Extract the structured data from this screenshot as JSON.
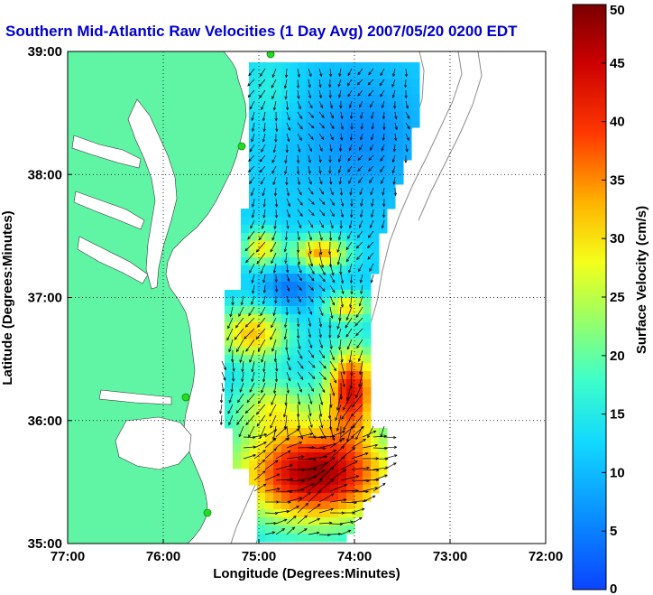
{
  "chart_data": {
    "type": "heatmap",
    "title": "Southern Mid-Atlantic Raw Velocities (1 Day Avg) 2007/05/20 0200 EDT",
    "xlabel": "Longitude (Degrees:Minutes)",
    "ylabel": "Latitude (Degrees:Minutes)",
    "xlim": [
      -77,
      -72
    ],
    "ylim": [
      35,
      39
    ],
    "x_tick_values": [
      -77,
      -76,
      -75,
      -74,
      -73,
      -72
    ],
    "x_tick_labels": [
      "77:00",
      "76:00",
      "75:00",
      "74:00",
      "73:00",
      "72:00"
    ],
    "y_tick_values": [
      35,
      36,
      37,
      38,
      39
    ],
    "y_tick_labels": [
      "35:00",
      "36:00",
      "37:00",
      "38:00",
      "39:00"
    ],
    "grid": true,
    "colorbar": {
      "label": "Surface Velocity (cm/s)",
      "min": 0,
      "max": 50,
      "tick_values": [
        0,
        5,
        10,
        15,
        20,
        25,
        30,
        35,
        40,
        45,
        50
      ],
      "tick_labels": [
        "0",
        "5",
        "10",
        "15",
        "20",
        "25",
        "30",
        "35",
        "40",
        "45",
        "50"
      ]
    },
    "colors": {
      "title": "#0000cc",
      "land": "#5ff5a5",
      "water": "#ffffff",
      "bathymetry": "#8c8c8c",
      "station": "#22dd22",
      "vector": "#000000"
    }
  }
}
